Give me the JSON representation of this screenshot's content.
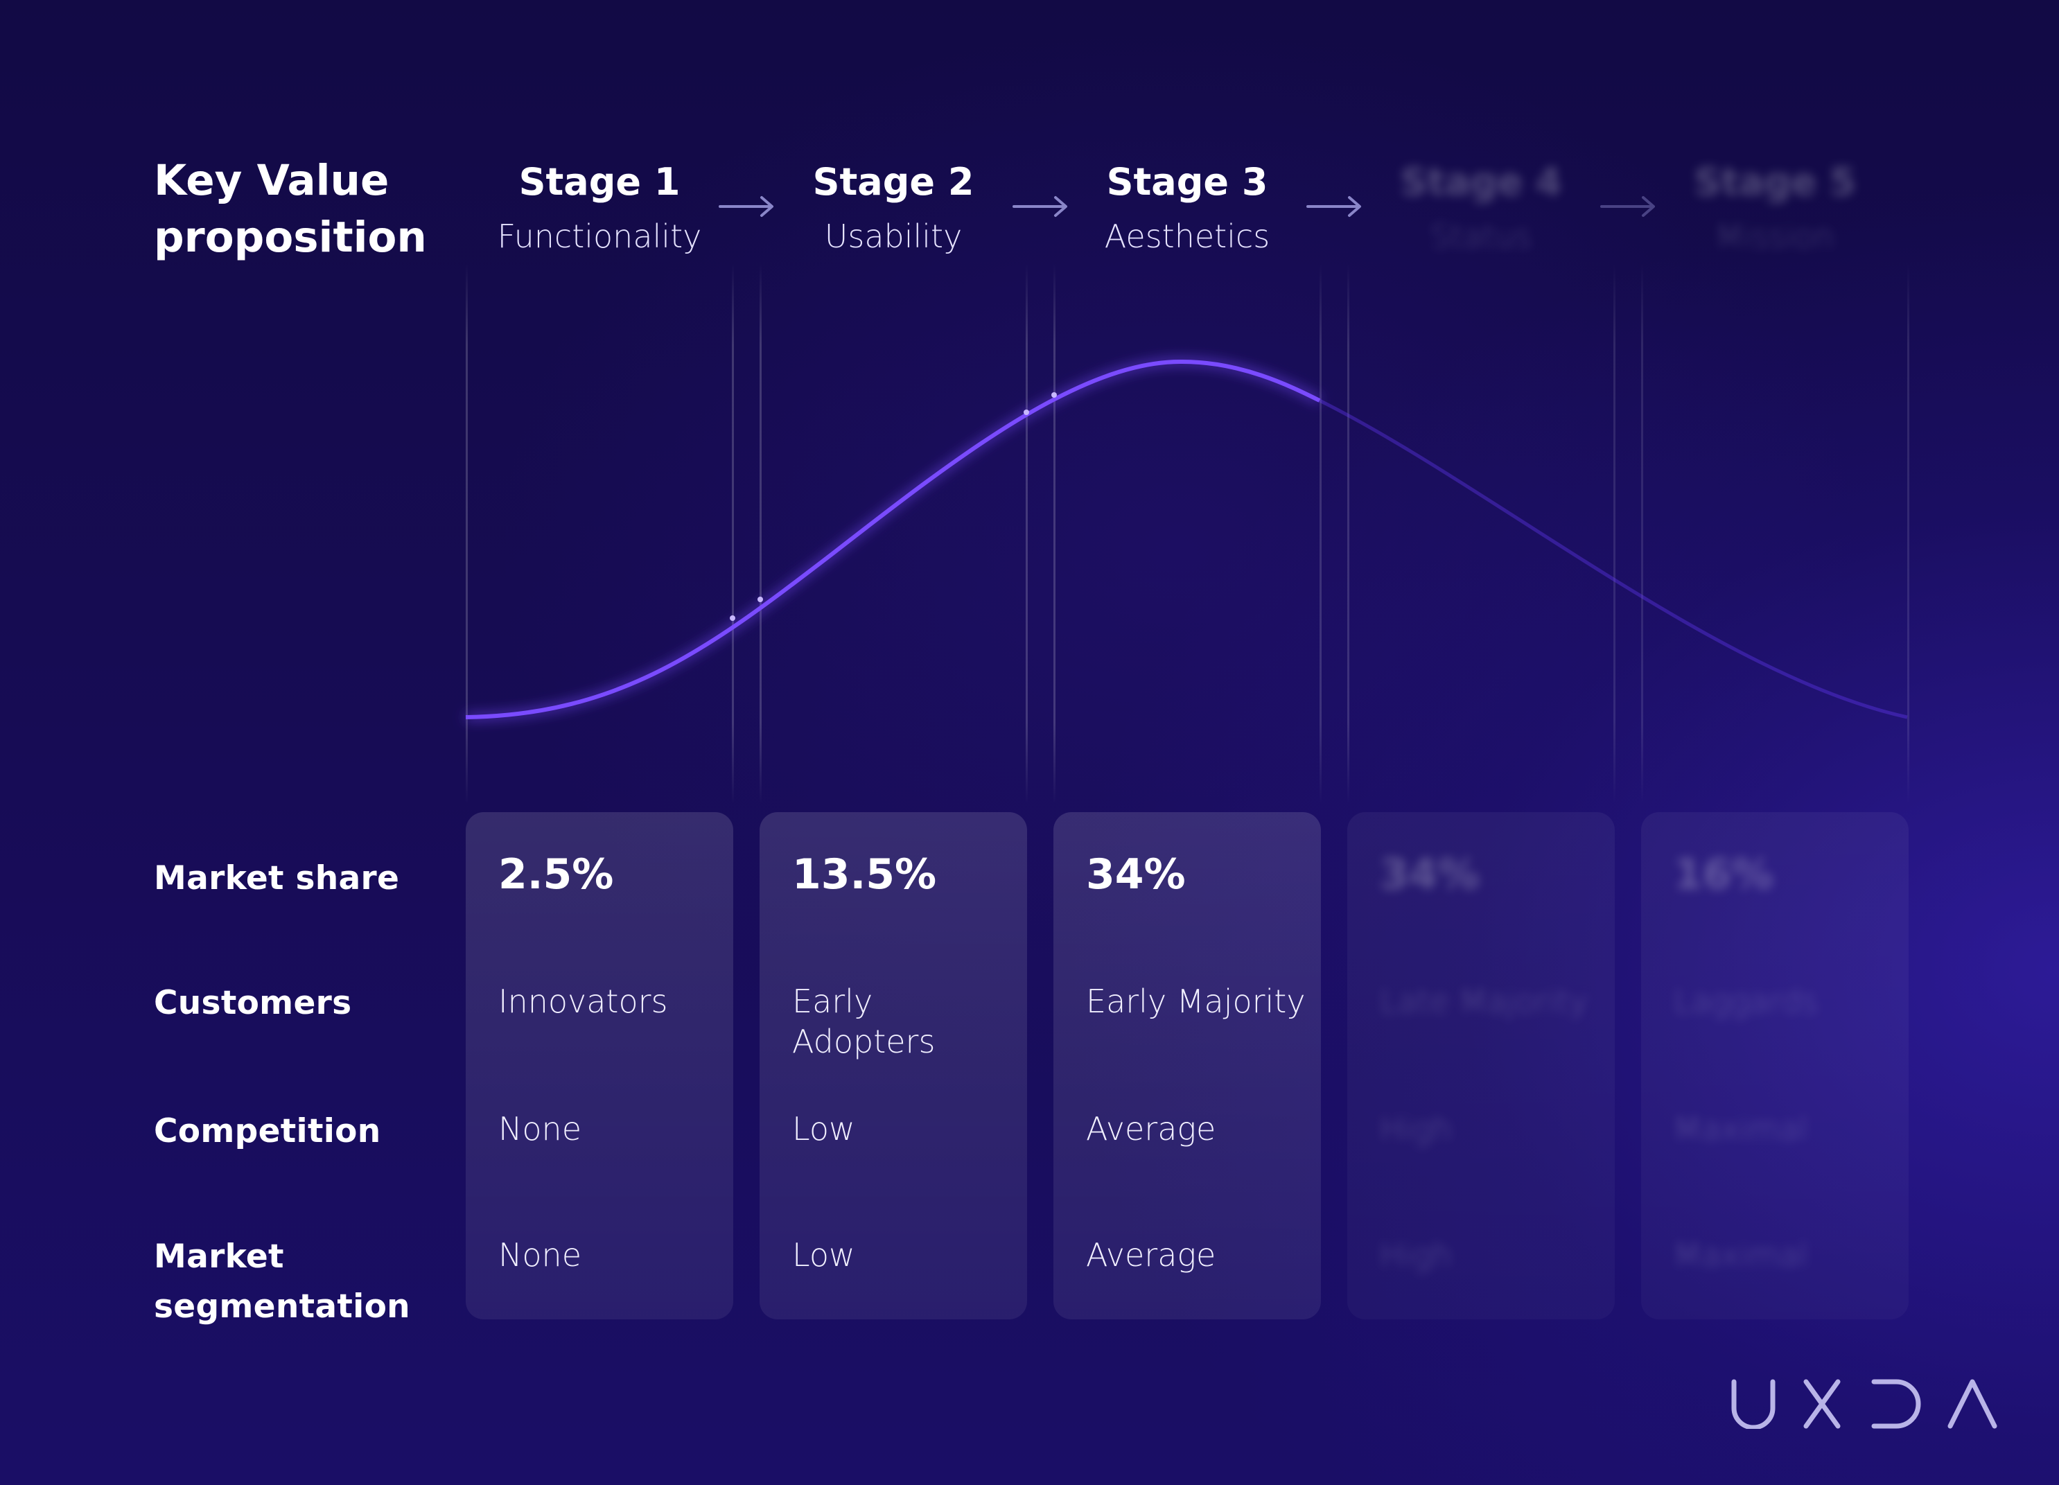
{
  "header": {
    "title": "Key Value proposition"
  },
  "stages": [
    {
      "name": "Stage 1",
      "subtitle": "Functionality",
      "market_share": "2.5%",
      "customers": "Innovators",
      "competition": "None",
      "segmentation": "None",
      "faded": false
    },
    {
      "name": "Stage 2",
      "subtitle": "Usability",
      "market_share": "13.5%",
      "customers": "Early Adopters",
      "competition": "Low",
      "segmentation": "Low",
      "faded": false
    },
    {
      "name": "Stage 3",
      "subtitle": "Aesthetics",
      "market_share": "34%",
      "customers": "Early Majority",
      "competition": "Average",
      "segmentation": "Average",
      "faded": false
    },
    {
      "name": "Stage 4",
      "subtitle": "Status",
      "market_share": "34%",
      "customers": "Late Majority",
      "competition": "High",
      "segmentation": "High",
      "faded": true
    },
    {
      "name": "Stage 5",
      "subtitle": "Mission",
      "market_share": "16%",
      "customers": "Laggards",
      "competition": "Maximal",
      "segmentation": "Maximal",
      "faded": true
    }
  ],
  "row_labels": {
    "market_share": "Market share",
    "customers": "Customers",
    "competition": "Competition",
    "segmentation": "Market segmentation"
  },
  "logo": {
    "text": "UXDA"
  },
  "colors": {
    "background": "#14094a",
    "curve": "#6a3cff",
    "curve_glow": "#8a62ff",
    "card": "#2a1f6e",
    "text": "#ffffff"
  }
}
